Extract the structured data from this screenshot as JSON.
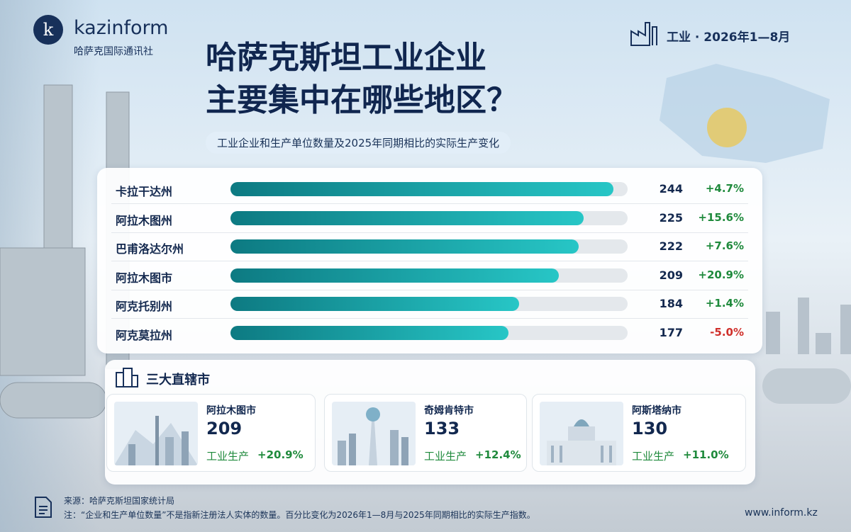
{
  "header": {
    "brand": "kazinform",
    "brand_sub": "哈萨克国际通讯社",
    "tag": "工业 · 2026年1—8月"
  },
  "chart_data": {
    "type": "bar",
    "title": [
      "哈萨克斯坦工业企业",
      "主要集中在哪些地区？"
    ],
    "subtitle": "工业企业和生产单位数量及2025年同期相比的实际生产变化",
    "categories": [
      "卡拉干达州",
      "阿拉木图州",
      "巴甫洛达尔州",
      "阿拉木图市",
      "阿克托别州",
      "阿克莫拉州"
    ],
    "values": [
      244,
      225,
      222,
      209,
      184,
      177
    ],
    "color": [
      "#0d7a82",
      "#27c6c6"
    ],
    "changes": {
      "values": [
        4.7,
        15.6,
        7.6,
        20.9,
        1.4,
        -5.0
      ],
      "value_labels": [
        "+4.7%",
        "+15.6%",
        "+7.6%",
        "+20.9%",
        "+1.4%",
        "-5.0%"
      ],
      "colors": {
        "up": "#1f8a3c",
        "down": "#d0302b"
      }
    }
  },
  "cities": {
    "title": "三大直辖市",
    "items": [
      {
        "name": "阿拉木图市",
        "count": 209,
        "metric": "工业生产",
        "change": 20.9,
        "change_label": "+20.9%"
      },
      {
        "name": "奇姆肯特市",
        "count": 133,
        "metric": "工业生产",
        "change": 12.4,
        "change_label": "+12.4%"
      },
      {
        "name": "阿斯塔纳市",
        "count": 130,
        "metric": "工业生产",
        "change": 11.0,
        "change_label": "+11.0%"
      }
    ]
  },
  "footer": {
    "source": "来源：哈萨克斯坦国家统计局",
    "note": "注：“企业和生产单位数量”不是指新注册法人实体的数量。百分比变化为2026年1—8月与2025年同期相比的实际生产指数。",
    "url": "www.inform.kz"
  }
}
